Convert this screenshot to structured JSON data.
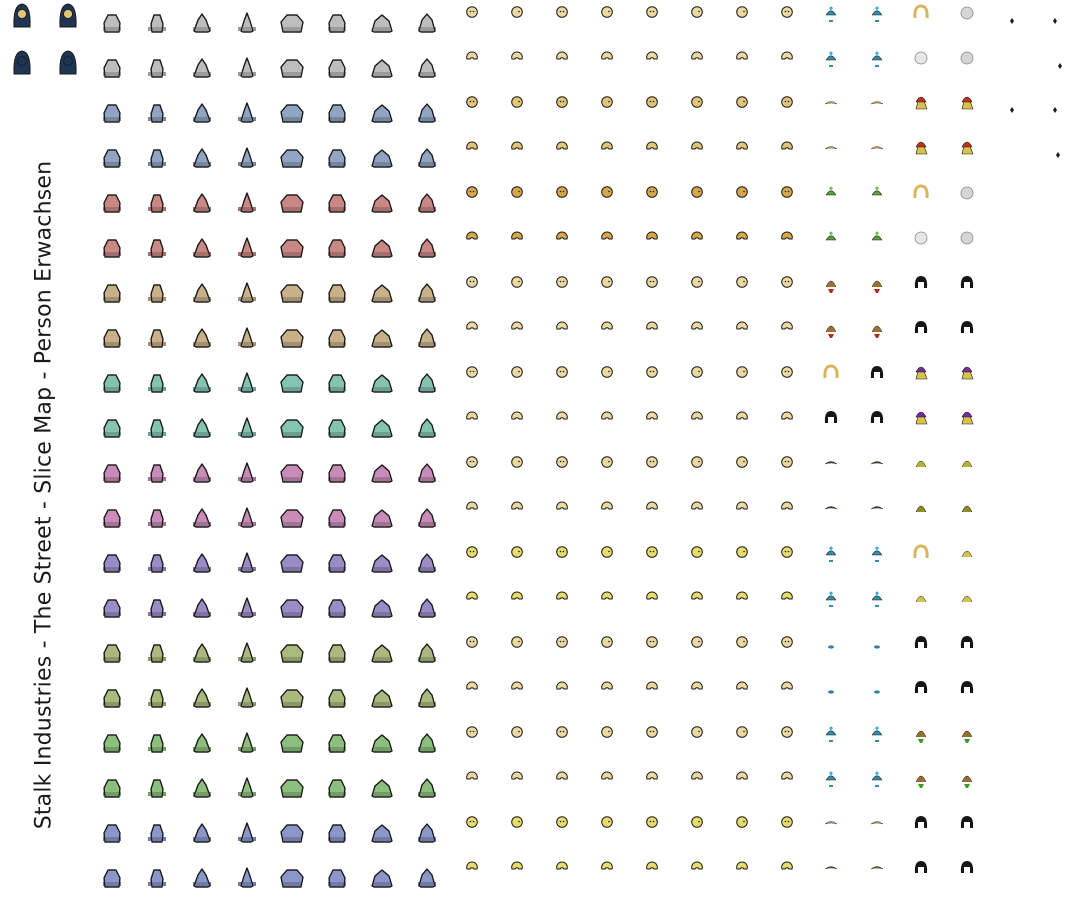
{
  "title": "Stalk Industries - The Street - Slice Map - Person Erwachsen",
  "palette": {
    "outline": "#1a1a1a",
    "navy": "#1f3552",
    "body_colors": [
      "#bdbdbd",
      "#8fa5c2",
      "#c98884",
      "#c8b089",
      "#84c3b2",
      "#c98bb8",
      "#9b8cc7",
      "#aab97d",
      "#8cbe7d",
      "#8b96c9"
    ],
    "skin_colors": [
      "#ecd9a1",
      "#e3c578",
      "#d7a84a",
      "#ecd9a1",
      "#ecd9a1",
      "#ecd9a1",
      "#e8dc6c",
      "#ecd9a1",
      "#ecd9a1",
      "#e8dc6c"
    ]
  },
  "sprite_sheet": {
    "body_columns": 8,
    "face_columns": 8,
    "rows": 20,
    "hair_rows": [
      [
        "teal-beanie",
        "teal-beanie",
        "blond-curly",
        "grey-long"
      ],
      [
        "teal-beanie",
        "teal-beanie",
        "white-bald",
        "grey-long"
      ],
      [
        "blond-cap",
        "blond-cap",
        "red-beanie-blond",
        "red-beanie-blond"
      ],
      [
        "blond-cap",
        "blond-cap",
        "red-beanie-blond",
        "red-beanie-blond"
      ],
      [
        "green-beanie",
        "green-beanie",
        "blond-curly",
        "grey-long"
      ],
      [
        "green-beanie",
        "green-beanie",
        "white-bald",
        "grey-long"
      ],
      [
        "brown-red-scarf",
        "brown-red-scarf",
        "black-long",
        "black-long"
      ],
      [
        "brown-red-scarf",
        "brown-red-scarf",
        "black-long",
        "black-long"
      ],
      [
        "blond-curly",
        "black-long",
        "purple-beanie-blond",
        "purple-beanie-blond"
      ],
      [
        "black-bun",
        "black-long",
        "purple-beanie-blond",
        "purple-beanie-blond"
      ],
      [
        "brown-moustache",
        "brown-short",
        "blond-mohawk",
        "blond-mohawk"
      ],
      [
        "brown-moustache",
        "brown-short",
        "olive-puff",
        "olive-puff"
      ],
      [
        "teal-beanie",
        "teal-beanie",
        "blond-curly",
        "blond-pigtails"
      ],
      [
        "teal-beanie",
        "teal-beanie",
        "blond-pigtails",
        "blond-pigtails"
      ],
      [
        "teal-dot",
        "teal-dot",
        "black-curly",
        "black-curly"
      ],
      [
        "teal-dot",
        "teal-dot",
        "black-curly",
        "black-curly"
      ],
      [
        "teal-beanie",
        "teal-beanie",
        "brown-green-scarf",
        "brown-green-scarf"
      ],
      [
        "teal-beanie",
        "teal-beanie",
        "brown-green-scarf",
        "brown-green-scarf"
      ],
      [
        "tan-stubble",
        "tan-stubble",
        "black-short",
        "black-short"
      ],
      [
        "brown-stubble",
        "brown-stubble",
        "black-short",
        "black-short"
      ]
    ]
  }
}
